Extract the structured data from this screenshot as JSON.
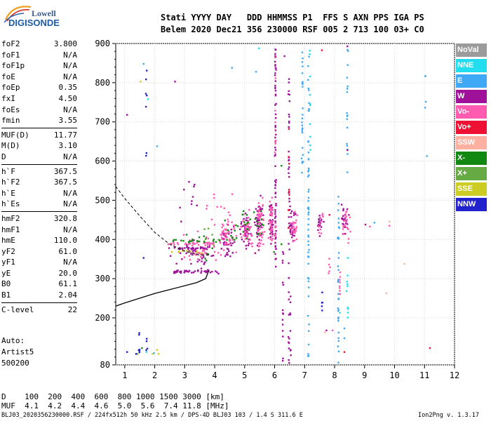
{
  "logo": {
    "line1": "Lowell",
    "line2": "DIGISONDE"
  },
  "header": {
    "line1": "Stati YYYY DAY   DDD HHMMSS P1  FFS S AXN PPS IGA PS",
    "line2": "Belem 2020 Dec21 356 230000 RSF 005 2 713 100 03+ C0"
  },
  "params_groups": [
    [
      {
        "k": "foF2",
        "v": "3.800"
      },
      {
        "k": "foF1",
        "v": "N/A"
      },
      {
        "k": "foF1p",
        "v": "N/A"
      },
      {
        "k": "foE",
        "v": "N/A"
      },
      {
        "k": "foEp",
        "v": "0.35"
      },
      {
        "k": "fxI",
        "v": "4.50"
      },
      {
        "k": "foEs",
        "v": "N/A"
      },
      {
        "k": "fmin",
        "v": "3.55"
      }
    ],
    [
      {
        "k": "MUF(D)",
        "v": "11.77"
      },
      {
        "k": "M(D)",
        "v": "3.10"
      },
      {
        "k": "D",
        "v": "N/A"
      }
    ],
    [
      {
        "k": "h`F",
        "v": "367.5"
      },
      {
        "k": "h`F2",
        "v": "367.5"
      },
      {
        "k": "h`E",
        "v": "N/A"
      },
      {
        "k": "h`Es",
        "v": "N/A"
      }
    ],
    [
      {
        "k": "hmF2",
        "v": "320.8"
      },
      {
        "k": "hmF1",
        "v": "N/A"
      },
      {
        "k": "hmE",
        "v": "110.0"
      },
      {
        "k": "yF2",
        "v": "61.0"
      },
      {
        "k": "yF1",
        "v": "N/A"
      },
      {
        "k": "yE",
        "v": "20.0"
      },
      {
        "k": "B0",
        "v": "61.1"
      },
      {
        "k": "B1",
        "v": "2.04"
      }
    ],
    [
      {
        "k": "C-level",
        "v": "22"
      }
    ]
  ],
  "auto": {
    "line1": "Auto:",
    "line2": "Artist5",
    "line3": "500200"
  },
  "legend": [
    {
      "label": "NoVal",
      "color": "#9b9b9b"
    },
    {
      "label": "NNE",
      "color": "#22ddee"
    },
    {
      "label": "E",
      "color": "#3fa9f5"
    },
    {
      "label": "W",
      "color": "#a0119a"
    },
    {
      "label": "Vo-",
      "color": "#ff5bb0"
    },
    {
      "label": "Vo+",
      "color": "#ee1133"
    },
    {
      "label": "SSW",
      "color": "#ffb0a0"
    },
    {
      "label": "X-",
      "color": "#118811"
    },
    {
      "label": "X+",
      "color": "#66aa44"
    },
    {
      "label": "SSE",
      "color": "#cccc22"
    },
    {
      "label": "NNW",
      "color": "#2222cc"
    }
  ],
  "muf_table": {
    "line1": "D    100  200  400  600  800 1000 1500 3000 [km]",
    "line2": "MUF  4.1  4.2  4.4  4.6  5.0  5.6  7.4 11.8 [MHz]"
  },
  "footer": {
    "left": "BLJ03_2020356230000.RSF / 224fx512h 50 kHz 2.5 km / DPS-4D BLJ03 103 / 1.4 S 311.6 E",
    "right": "Ion2Png v. 1.3.17"
  },
  "chart_data": {
    "type": "scatter",
    "xlim": [
      0.7,
      12.0
    ],
    "ylim": [
      80,
      900
    ],
    "x_ticks": [
      1,
      2,
      3,
      4,
      5,
      6,
      7,
      8,
      9,
      10,
      11,
      12
    ],
    "y_ticks": [
      80,
      200,
      300,
      400,
      500,
      600,
      700,
      800,
      900
    ],
    "grid": true,
    "legend_position": "right",
    "profile": [
      {
        "x": 0.7,
        "y": 230
      },
      {
        "x": 1.0,
        "y": 238
      },
      {
        "x": 1.5,
        "y": 250
      },
      {
        "x": 2.0,
        "y": 262
      },
      {
        "x": 2.5,
        "y": 272
      },
      {
        "x": 3.0,
        "y": 282
      },
      {
        "x": 3.4,
        "y": 290
      },
      {
        "x": 3.7,
        "y": 300
      },
      {
        "x": 3.8,
        "y": 320
      }
    ],
    "profile_extension": [
      {
        "x": 0.7,
        "y": 535
      },
      {
        "x": 1.0,
        "y": 505
      },
      {
        "x": 1.5,
        "y": 460
      },
      {
        "x": 2.0,
        "y": 418
      },
      {
        "x": 2.5,
        "y": 388
      },
      {
        "x": 3.0,
        "y": 370
      },
      {
        "x": 3.5,
        "y": 360
      },
      {
        "x": 3.8,
        "y": 360
      }
    ],
    "traces": [
      {
        "mode": "W",
        "x0": 2.6,
        "x1": 4.2,
        "y": 320,
        "n": 40
      },
      {
        "mode": "W",
        "x0": 2.6,
        "x1": 3.8,
        "y": 380,
        "n": 30
      },
      {
        "mode": "Vo-",
        "x0": 2.4,
        "x1": 4.0,
        "y": 392,
        "n": 30
      },
      {
        "mode": "X-",
        "x0": 2.5,
        "x1": 4.2,
        "y": 398,
        "n": 14
      },
      {
        "mode": "SSE",
        "x0": 2.5,
        "x1": 3.6,
        "y": 372,
        "n": 10
      }
    ],
    "clusters": [
      {
        "mode": "W",
        "x": 3.3,
        "y": 370,
        "sx": 0.5,
        "sy": 25,
        "n": 40
      },
      {
        "mode": "Vo-",
        "x": 3.6,
        "y": 380,
        "sx": 0.5,
        "sy": 30,
        "n": 40
      },
      {
        "mode": "X-",
        "x": 3.5,
        "y": 380,
        "sx": 0.6,
        "sy": 30,
        "n": 15
      },
      {
        "mode": "X+",
        "x": 3.8,
        "y": 395,
        "sx": 0.5,
        "sy": 30,
        "n": 8
      },
      {
        "mode": "W",
        "x": 4.4,
        "y": 400,
        "sx": 0.2,
        "sy": 35,
        "n": 45
      },
      {
        "mode": "Vo-",
        "x": 4.4,
        "y": 410,
        "sx": 0.2,
        "sy": 40,
        "n": 40
      },
      {
        "mode": "X-",
        "x": 4.5,
        "y": 410,
        "sx": 0.2,
        "sy": 35,
        "n": 10
      },
      {
        "mode": "W",
        "x": 5.0,
        "y": 430,
        "sx": 0.14,
        "sy": 40,
        "n": 45
      },
      {
        "mode": "Vo-",
        "x": 5.05,
        "y": 430,
        "sx": 0.14,
        "sy": 40,
        "n": 40
      },
      {
        "mode": "X-",
        "x": 5.0,
        "y": 440,
        "sx": 0.15,
        "sy": 40,
        "n": 12
      },
      {
        "mode": "W",
        "x": 5.45,
        "y": 440,
        "sx": 0.1,
        "sy": 50,
        "n": 45
      },
      {
        "mode": "Vo-",
        "x": 5.5,
        "y": 440,
        "sx": 0.1,
        "sy": 50,
        "n": 45
      },
      {
        "mode": "X-",
        "x": 5.45,
        "y": 445,
        "sx": 0.15,
        "sy": 45,
        "n": 12
      },
      {
        "mode": "W",
        "x": 5.85,
        "y": 450,
        "sx": 0.06,
        "sy": 50,
        "n": 40
      },
      {
        "mode": "Vo-",
        "x": 5.85,
        "y": 450,
        "sx": 0.06,
        "sy": 50,
        "n": 35
      },
      {
        "mode": "W",
        "x": 6.55,
        "y": 440,
        "sx": 0.1,
        "sy": 40,
        "n": 30
      },
      {
        "mode": "Vo-",
        "x": 6.6,
        "y": 430,
        "sx": 0.1,
        "sy": 30,
        "n": 25
      },
      {
        "mode": "W",
        "x": 7.5,
        "y": 440,
        "sx": 0.08,
        "sy": 25,
        "n": 16
      },
      {
        "mode": "Vo-",
        "x": 7.5,
        "y": 445,
        "sx": 0.08,
        "sy": 20,
        "n": 10
      },
      {
        "mode": "W",
        "x": 8.3,
        "y": 450,
        "sx": 0.12,
        "sy": 30,
        "n": 25
      },
      {
        "mode": "Vo-",
        "x": 8.35,
        "y": 440,
        "sx": 0.12,
        "sy": 30,
        "n": 20
      },
      {
        "mode": "W",
        "x": 2.9,
        "y": 500,
        "sx": 0.7,
        "sy": 60,
        "n": 10
      },
      {
        "mode": "Vo-",
        "x": 4.0,
        "y": 475,
        "sx": 0.6,
        "sy": 30,
        "n": 10
      }
    ],
    "columns": [
      {
        "mode": "W",
        "x": 6.0,
        "y0": 330,
        "y1": 900,
        "n": 70
      },
      {
        "mode": "Vo-",
        "x": 6.0,
        "y0": 350,
        "y1": 880,
        "n": 15
      },
      {
        "mode": "W",
        "x": 6.45,
        "y0": 80,
        "y1": 820,
        "n": 40
      },
      {
        "mode": "Vo+",
        "x": 6.45,
        "y0": 420,
        "y1": 720,
        "n": 10
      },
      {
        "mode": "W",
        "x": 6.25,
        "y0": 90,
        "y1": 380,
        "n": 15
      },
      {
        "mode": "E",
        "x": 7.1,
        "y0": 80,
        "y1": 900,
        "n": 55
      },
      {
        "mode": "NNE",
        "x": 7.15,
        "y0": 620,
        "y1": 900,
        "n": 10
      },
      {
        "mode": "E",
        "x": 6.9,
        "y0": 550,
        "y1": 880,
        "n": 25
      },
      {
        "mode": "E",
        "x": 8.1,
        "y0": 80,
        "y1": 540,
        "n": 35
      },
      {
        "mode": "NNE",
        "x": 8.4,
        "y0": 180,
        "y1": 360,
        "n": 10
      },
      {
        "mode": "E",
        "x": 8.4,
        "y0": 560,
        "y1": 900,
        "n": 18
      },
      {
        "mode": "Vo-",
        "x": 8.15,
        "y0": 260,
        "y1": 320,
        "n": 8
      },
      {
        "mode": "W",
        "x": 6.5,
        "y0": 100,
        "y1": 260,
        "n": 8
      },
      {
        "mode": "E",
        "x": 11.0,
        "y0": 690,
        "y1": 820,
        "n": 4
      },
      {
        "mode": "NNW",
        "x": 1.7,
        "y0": 580,
        "y1": 835,
        "n": 7
      },
      {
        "mode": "NNW",
        "x": 1.45,
        "y0": 110,
        "y1": 170,
        "n": 6
      },
      {
        "mode": "NNW",
        "x": 1.7,
        "y0": 110,
        "y1": 150,
        "n": 4
      },
      {
        "mode": "E",
        "x": 7.0,
        "y0": 900,
        "y1": 900,
        "n": 3
      },
      {
        "mode": "NNW",
        "x": 7.55,
        "y0": 220,
        "y1": 270,
        "n": 5
      },
      {
        "mode": "Vo-",
        "x": 7.8,
        "y0": 300,
        "y1": 380,
        "n": 5
      }
    ],
    "points": [
      {
        "mode": "W",
        "x": 1.05,
        "y": 720
      },
      {
        "mode": "W",
        "x": 2.65,
        "y": 805
      },
      {
        "mode": "SSE",
        "x": 1.5,
        "y": 805
      },
      {
        "mode": "NNE",
        "x": 1.75,
        "y": 760
      },
      {
        "mode": "E",
        "x": 4.55,
        "y": 840
      },
      {
        "mode": "E",
        "x": 5.35,
        "y": 830
      },
      {
        "mode": "NNE",
        "x": 5.45,
        "y": 890
      },
      {
        "mode": "Vo+",
        "x": 7.55,
        "y": 885
      },
      {
        "mode": "W",
        "x": 8.4,
        "y": 895
      },
      {
        "mode": "W",
        "x": 6.3,
        "y": 870
      },
      {
        "mode": "Vo-",
        "x": 9.15,
        "y": 435
      },
      {
        "mode": "W",
        "x": 9.0,
        "y": 440
      },
      {
        "mode": "E",
        "x": 9.3,
        "y": 445
      },
      {
        "mode": "Vo-",
        "x": 9.8,
        "y": 437
      },
      {
        "mode": "SSW",
        "x": 9.8,
        "y": 448
      },
      {
        "mode": "SSW",
        "x": 10.3,
        "y": 340
      },
      {
        "mode": "SSW",
        "x": 9.7,
        "y": 265
      },
      {
        "mode": "Vo+",
        "x": 11.15,
        "y": 125
      },
      {
        "mode": "X-",
        "x": 5.95,
        "y": 370
      },
      {
        "mode": "X-",
        "x": 6.2,
        "y": 390
      },
      {
        "mode": "X-",
        "x": 6.2,
        "y": 590
      },
      {
        "mode": "Vo+",
        "x": 7.8,
        "y": 465
      },
      {
        "mode": "W",
        "x": 7.7,
        "y": 170
      },
      {
        "mode": "Vo-",
        "x": 7.9,
        "y": 170
      },
      {
        "mode": "SSW",
        "x": 7.65,
        "y": 165
      },
      {
        "mode": "E",
        "x": 8.3,
        "y": 175
      },
      {
        "mode": "E",
        "x": 8.3,
        "y": 150
      },
      {
        "mode": "NNE",
        "x": 8.15,
        "y": 215
      },
      {
        "mode": "Vo+",
        "x": 8.3,
        "y": 115
      },
      {
        "mode": "W",
        "x": 8.4,
        "y": 630
      },
      {
        "mode": "E",
        "x": 11.05,
        "y": 615
      },
      {
        "mode": "W",
        "x": 2.45,
        "y": 380
      },
      {
        "mode": "W",
        "x": 2.5,
        "y": 360
      },
      {
        "mode": "E",
        "x": 2.05,
        "y": 640
      },
      {
        "mode": "X-",
        "x": 1.55,
        "y": 125
      },
      {
        "mode": "X+",
        "x": 1.4,
        "y": 110
      },
      {
        "mode": "SSE",
        "x": 1.9,
        "y": 110
      },
      {
        "mode": "SSE",
        "x": 2.05,
        "y": 120
      },
      {
        "mode": "E",
        "x": 1.95,
        "y": 112
      },
      {
        "mode": "SSE",
        "x": 2.1,
        "y": 110
      },
      {
        "mode": "NNW",
        "x": 1.35,
        "y": 110
      },
      {
        "mode": "E",
        "x": 1.6,
        "y": 850
      },
      {
        "mode": "NNW",
        "x": 1.05,
        "y": 115
      },
      {
        "mode": "NNE",
        "x": 1.7,
        "y": 115
      },
      {
        "mode": "NNW",
        "x": 1.6,
        "y": 355
      }
    ]
  }
}
